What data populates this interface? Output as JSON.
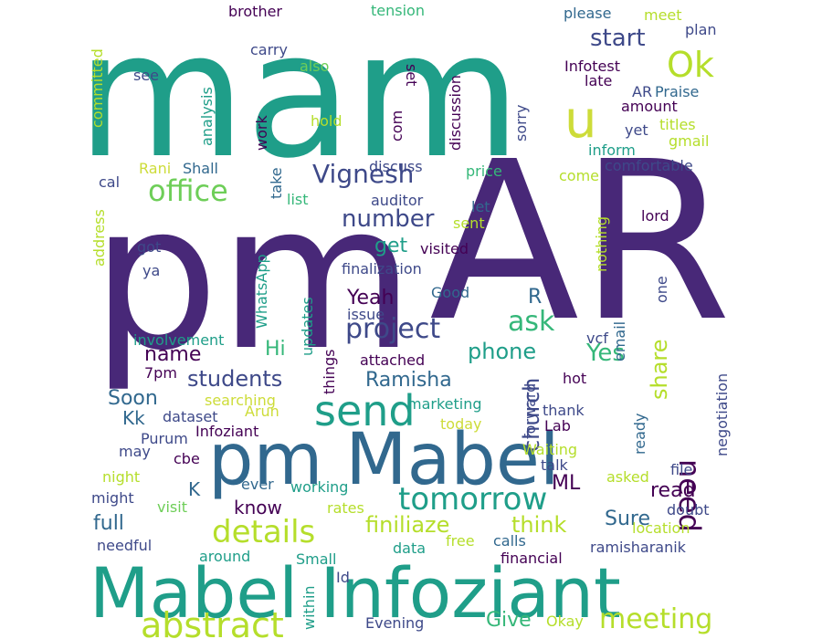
{
  "wordcloud": {
    "colors": {
      "deep_purple": "#440154",
      "indigo": "#482878",
      "purple_blue": "#3e4989",
      "blue": "#31688e",
      "steel_blue": "#26828e",
      "teal": "#1f9e89",
      "green_teal": "#35b779",
      "green": "#6ece58",
      "lime": "#b5de2b",
      "yellow": "#cddc39"
    },
    "words": [
      {
        "text": "mam"
      },
      {
        "text": "AR"
      },
      {
        "text": "pm"
      },
      {
        "text": "Mabel Infoziant"
      },
      {
        "text": "pm Mabel"
      },
      {
        "text": "u"
      },
      {
        "text": "Ok"
      },
      {
        "text": "office"
      },
      {
        "text": "Vignesh"
      },
      {
        "text": "send"
      },
      {
        "text": "project"
      },
      {
        "text": "tomorrow"
      },
      {
        "text": "details"
      },
      {
        "text": "abstract"
      },
      {
        "text": "meeting"
      },
      {
        "text": "number"
      },
      {
        "text": "ask"
      },
      {
        "text": "need"
      },
      {
        "text": "church"
      },
      {
        "text": "students"
      },
      {
        "text": "finiliaze"
      },
      {
        "text": "think"
      },
      {
        "text": "start"
      },
      {
        "text": "phone"
      },
      {
        "text": "Yes"
      },
      {
        "text": "share"
      },
      {
        "text": "Ramisha"
      },
      {
        "text": "Yeah"
      },
      {
        "text": "get"
      },
      {
        "text": "name"
      },
      {
        "text": "Hi"
      },
      {
        "text": "Soon"
      },
      {
        "text": "Kk"
      },
      {
        "text": "read"
      },
      {
        "text": "Sure"
      },
      {
        "text": "full"
      },
      {
        "text": "know"
      },
      {
        "text": "K"
      },
      {
        "text": "ML"
      },
      {
        "text": "Give"
      },
      {
        "text": "R"
      },
      {
        "text": "brother"
      },
      {
        "text": "tension"
      },
      {
        "text": "please"
      },
      {
        "text": "meet"
      },
      {
        "text": "plan"
      },
      {
        "text": "carry"
      },
      {
        "text": "also"
      },
      {
        "text": "set"
      },
      {
        "text": "Infotest"
      },
      {
        "text": "late"
      },
      {
        "text": "see"
      },
      {
        "text": "committed"
      },
      {
        "text": "analysis"
      },
      {
        "text": "work"
      },
      {
        "text": "hold"
      },
      {
        "text": "com"
      },
      {
        "text": "discussion"
      },
      {
        "text": "sorry"
      },
      {
        "text": "AR"
      },
      {
        "text": "Praise"
      },
      {
        "text": "amount"
      },
      {
        "text": "yet"
      },
      {
        "text": "titles"
      },
      {
        "text": "gmail"
      },
      {
        "text": "inform"
      },
      {
        "text": "comfortable"
      },
      {
        "text": "come"
      },
      {
        "text": "price"
      },
      {
        "text": "discuss"
      },
      {
        "text": "take"
      },
      {
        "text": "list"
      },
      {
        "text": "auditor"
      },
      {
        "text": "let"
      },
      {
        "text": "sent"
      },
      {
        "text": "Rani"
      },
      {
        "text": "Shall"
      },
      {
        "text": "cal"
      },
      {
        "text": "address"
      },
      {
        "text": "got"
      },
      {
        "text": "ya"
      },
      {
        "text": "WhatsApp"
      },
      {
        "text": "visited"
      },
      {
        "text": "finalization"
      },
      {
        "text": "nothing"
      },
      {
        "text": "lord"
      },
      {
        "text": "one"
      },
      {
        "text": "Good"
      },
      {
        "text": "issue"
      },
      {
        "text": "updates"
      },
      {
        "text": "involvement"
      },
      {
        "text": "things"
      },
      {
        "text": "attached"
      },
      {
        "text": "vcf"
      },
      {
        "text": "email"
      },
      {
        "text": "negotiation"
      },
      {
        "text": "7pm"
      },
      {
        "text": "hot"
      },
      {
        "text": "searching"
      },
      {
        "text": "Arun"
      },
      {
        "text": "dataset"
      },
      {
        "text": "marketing"
      },
      {
        "text": "thank"
      },
      {
        "text": "forward"
      },
      {
        "text": "today"
      },
      {
        "text": "Lab"
      },
      {
        "text": "Infoziant"
      },
      {
        "text": "Purum"
      },
      {
        "text": "may"
      },
      {
        "text": "cbe"
      },
      {
        "text": "Waiting"
      },
      {
        "text": "ready"
      },
      {
        "text": "talk"
      },
      {
        "text": "asked"
      },
      {
        "text": "file"
      },
      {
        "text": "night"
      },
      {
        "text": "ever"
      },
      {
        "text": "working"
      },
      {
        "text": "might"
      },
      {
        "text": "visit"
      },
      {
        "text": "rates"
      },
      {
        "text": "doubt"
      },
      {
        "text": "location"
      },
      {
        "text": "needful"
      },
      {
        "text": "around"
      },
      {
        "text": "Small"
      },
      {
        "text": "data"
      },
      {
        "text": "free"
      },
      {
        "text": "calls"
      },
      {
        "text": "financial"
      },
      {
        "text": "ramisharanik"
      },
      {
        "text": "Id"
      },
      {
        "text": "within"
      },
      {
        "text": "Evening"
      },
      {
        "text": "Okay"
      }
    ]
  }
}
